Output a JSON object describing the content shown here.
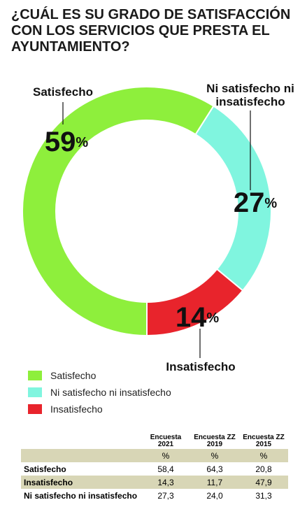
{
  "chart_data": {
    "type": "pie",
    "donut": true,
    "title": "¿CUÁL ES SU GRADO DE SATISFACCIÓN CON LOS SERVICIOS QUE PRESTA EL AYUNTAMIENTO?",
    "categories": [
      "Satisfecho",
      "Ni satisfecho ni insatisfecho",
      "Insatisfecho"
    ],
    "values": [
      59,
      27,
      14
    ],
    "value_labels": [
      "59%",
      "27%",
      "14%"
    ],
    "colors": [
      "#8eef3c",
      "#80f5df",
      "#e8242c"
    ],
    "legend": "bottom-left"
  },
  "table": {
    "columns": [
      "Encuesta 2021",
      "Encuesta ZZ 2019",
      "Encuesta ZZ 2015"
    ],
    "units": [
      "%",
      "%",
      "%"
    ],
    "rows": [
      [
        "Satisfecho",
        "58,4",
        "64,3",
        "20,8"
      ],
      [
        "Insatisfecho",
        "14,3",
        "11,7",
        "47,9"
      ],
      [
        "Ni satisfecho ni insatisfecho",
        "27,3",
        "24,0",
        "31,3"
      ]
    ]
  }
}
